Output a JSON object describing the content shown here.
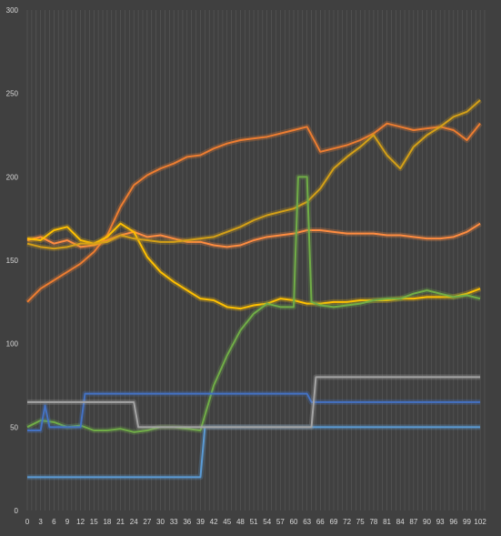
{
  "chart_data": {
    "type": "line",
    "title": "",
    "xlabel": "",
    "ylabel": "",
    "ylim": [
      0,
      300
    ],
    "xlim": [
      0,
      103
    ],
    "y_ticks": [
      0,
      50,
      100,
      150,
      200,
      250,
      300
    ],
    "x_ticks": [
      0,
      3,
      6,
      9,
      12,
      15,
      18,
      21,
      24,
      27,
      30,
      33,
      36,
      39,
      42,
      45,
      48,
      51,
      54,
      57,
      60,
      63,
      66,
      69,
      72,
      75,
      78,
      81,
      84,
      87,
      90,
      93,
      96,
      99,
      102
    ],
    "grid": "vertical",
    "legend": "none",
    "series": [
      {
        "color": "#ed7d31",
        "points": [
          [
            0,
            125
          ],
          [
            3,
            133
          ],
          [
            6,
            138
          ],
          [
            9,
            143
          ],
          [
            12,
            148
          ],
          [
            15,
            155
          ],
          [
            18,
            165
          ],
          [
            21,
            182
          ],
          [
            24,
            195
          ],
          [
            27,
            201
          ],
          [
            30,
            205
          ],
          [
            33,
            208
          ],
          [
            36,
            212
          ],
          [
            39,
            213
          ],
          [
            42,
            217
          ],
          [
            45,
            220
          ],
          [
            48,
            222
          ],
          [
            51,
            223
          ],
          [
            54,
            224
          ],
          [
            57,
            226
          ],
          [
            60,
            228
          ],
          [
            63,
            230
          ],
          [
            66,
            215
          ],
          [
            69,
            217
          ],
          [
            72,
            219
          ],
          [
            75,
            222
          ],
          [
            78,
            226
          ],
          [
            81,
            232
          ],
          [
            84,
            230
          ],
          [
            87,
            228
          ],
          [
            90,
            229
          ],
          [
            93,
            230
          ],
          [
            96,
            228
          ],
          [
            99,
            222
          ],
          [
            102,
            232
          ]
        ]
      },
      {
        "color": "#ff8c40",
        "points": [
          [
            0,
            162
          ],
          [
            3,
            164
          ],
          [
            6,
            160
          ],
          [
            9,
            162
          ],
          [
            12,
            158
          ],
          [
            15,
            159
          ],
          [
            18,
            162
          ],
          [
            21,
            165
          ],
          [
            24,
            167
          ],
          [
            27,
            164
          ],
          [
            30,
            165
          ],
          [
            33,
            163
          ],
          [
            36,
            161
          ],
          [
            39,
            161
          ],
          [
            42,
            159
          ],
          [
            45,
            158
          ],
          [
            48,
            159
          ],
          [
            51,
            162
          ],
          [
            54,
            164
          ],
          [
            57,
            165
          ],
          [
            60,
            166
          ],
          [
            63,
            168
          ],
          [
            66,
            168
          ],
          [
            69,
            167
          ],
          [
            72,
            166
          ],
          [
            75,
            166
          ],
          [
            78,
            166
          ],
          [
            81,
            165
          ],
          [
            84,
            165
          ],
          [
            87,
            164
          ],
          [
            90,
            163
          ],
          [
            93,
            163
          ],
          [
            96,
            164
          ],
          [
            99,
            167
          ],
          [
            102,
            172
          ]
        ]
      },
      {
        "color": "#ffc000",
        "points": [
          [
            0,
            163
          ],
          [
            3,
            162
          ],
          [
            6,
            168
          ],
          [
            9,
            170
          ],
          [
            12,
            162
          ],
          [
            15,
            160
          ],
          [
            18,
            164
          ],
          [
            21,
            172
          ],
          [
            24,
            167
          ],
          [
            27,
            152
          ],
          [
            30,
            143
          ],
          [
            33,
            137
          ],
          [
            36,
            132
          ],
          [
            39,
            127
          ],
          [
            42,
            126
          ],
          [
            45,
            122
          ],
          [
            48,
            121
          ],
          [
            51,
            123
          ],
          [
            54,
            124
          ],
          [
            57,
            127
          ],
          [
            60,
            126
          ],
          [
            63,
            124
          ],
          [
            66,
            124
          ],
          [
            69,
            125
          ],
          [
            72,
            125
          ],
          [
            75,
            126
          ],
          [
            78,
            126
          ],
          [
            81,
            126
          ],
          [
            84,
            127
          ],
          [
            87,
            127
          ],
          [
            90,
            128
          ],
          [
            93,
            128
          ],
          [
            96,
            128
          ],
          [
            99,
            130
          ],
          [
            102,
            133
          ]
        ]
      },
      {
        "color": "#d4a017",
        "points": [
          [
            0,
            160
          ],
          [
            3,
            158
          ],
          [
            6,
            157
          ],
          [
            9,
            158
          ],
          [
            12,
            160
          ],
          [
            15,
            160
          ],
          [
            18,
            161
          ],
          [
            21,
            165
          ],
          [
            24,
            163
          ],
          [
            27,
            162
          ],
          [
            30,
            161
          ],
          [
            33,
            161
          ],
          [
            36,
            162
          ],
          [
            39,
            163
          ],
          [
            42,
            164
          ],
          [
            45,
            167
          ],
          [
            48,
            170
          ],
          [
            51,
            174
          ],
          [
            54,
            177
          ],
          [
            57,
            179
          ],
          [
            60,
            181
          ],
          [
            63,
            185
          ],
          [
            66,
            193
          ],
          [
            69,
            205
          ],
          [
            72,
            212
          ],
          [
            75,
            218
          ],
          [
            78,
            225
          ],
          [
            81,
            213
          ],
          [
            84,
            205
          ],
          [
            87,
            218
          ],
          [
            90,
            225
          ],
          [
            93,
            230
          ],
          [
            96,
            236
          ],
          [
            99,
            239
          ],
          [
            102,
            246
          ]
        ]
      },
      {
        "color": "#70ad47",
        "points": [
          [
            0,
            50
          ],
          [
            3,
            54
          ],
          [
            6,
            53
          ],
          [
            9,
            50
          ],
          [
            12,
            51
          ],
          [
            15,
            48
          ],
          [
            18,
            48
          ],
          [
            21,
            49
          ],
          [
            24,
            47
          ],
          [
            27,
            48
          ],
          [
            30,
            50
          ],
          [
            33,
            50
          ],
          [
            36,
            49
          ],
          [
            39,
            48
          ],
          [
            42,
            75
          ],
          [
            45,
            93
          ],
          [
            48,
            108
          ],
          [
            51,
            118
          ],
          [
            54,
            124
          ],
          [
            57,
            122
          ],
          [
            60,
            122
          ],
          [
            61,
            200
          ],
          [
            63,
            200
          ],
          [
            64,
            125
          ],
          [
            66,
            123
          ],
          [
            69,
            122
          ],
          [
            72,
            123
          ],
          [
            75,
            124
          ],
          [
            78,
            126
          ],
          [
            81,
            127
          ],
          [
            84,
            127
          ],
          [
            87,
            130
          ],
          [
            90,
            132
          ],
          [
            93,
            130
          ],
          [
            96,
            128
          ],
          [
            99,
            129
          ],
          [
            102,
            127
          ]
        ]
      },
      {
        "color": "#4472c4",
        "points": [
          [
            0,
            48
          ],
          [
            3,
            48
          ],
          [
            4,
            63
          ],
          [
            5,
            50
          ],
          [
            11,
            50
          ],
          [
            12,
            50
          ],
          [
            13,
            70
          ],
          [
            63,
            70
          ],
          [
            64,
            65
          ],
          [
            102,
            65
          ]
        ]
      },
      {
        "color": "#5b9bd5",
        "points": [
          [
            0,
            20
          ],
          [
            39,
            20
          ],
          [
            40,
            50
          ],
          [
            102,
            50
          ]
        ]
      },
      {
        "color": "#a5a5a5",
        "points": [
          [
            0,
            65
          ],
          [
            24,
            65
          ],
          [
            25,
            50
          ],
          [
            64,
            50
          ],
          [
            65,
            80
          ],
          [
            102,
            80
          ]
        ]
      }
    ]
  }
}
